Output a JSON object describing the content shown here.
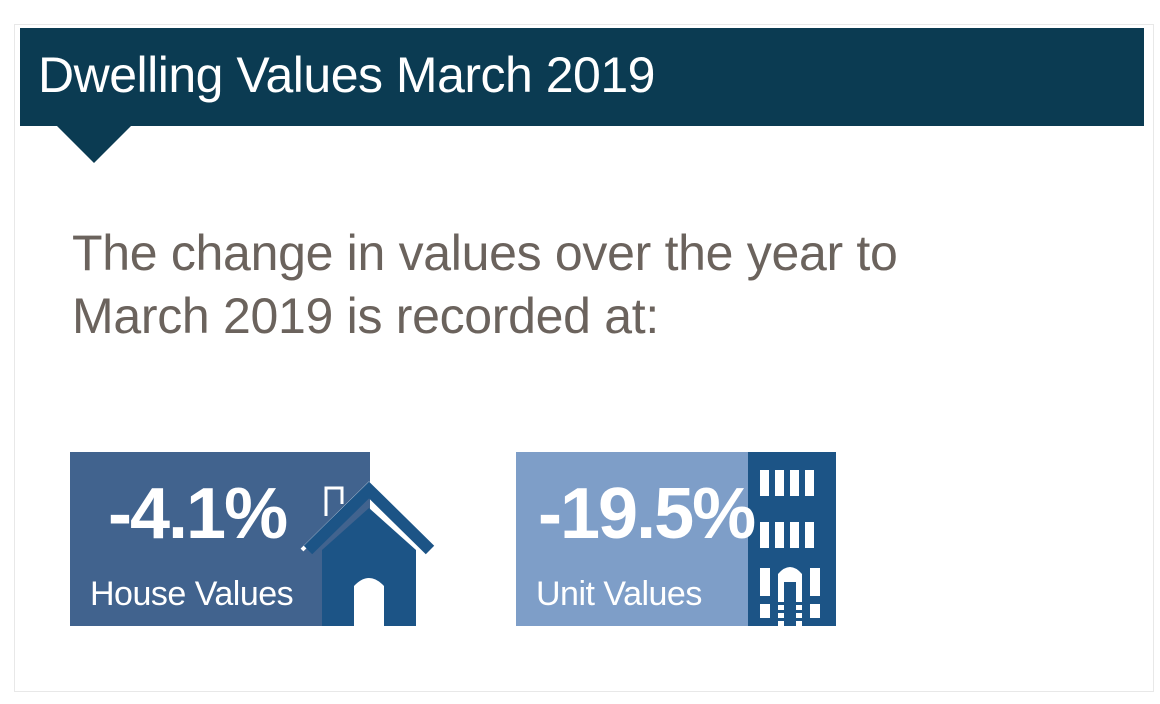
{
  "header": {
    "title": "Dwelling Values March 2019"
  },
  "intro": {
    "line1": "The change in values over the year to",
    "line2": "March 2019 is recorded at:"
  },
  "stats": [
    {
      "value": "-4.1%",
      "label": "House Values",
      "icon": "house-icon"
    },
    {
      "value": "-19.5%",
      "label": "Unit Values",
      "icon": "building-icon"
    }
  ],
  "colors": {
    "banner": "#0b3b52",
    "house_panel": "#41638e",
    "unit_panel": "#7e9ec8",
    "icon_dark": "#1c5486",
    "intro_text": "#6b635d"
  }
}
